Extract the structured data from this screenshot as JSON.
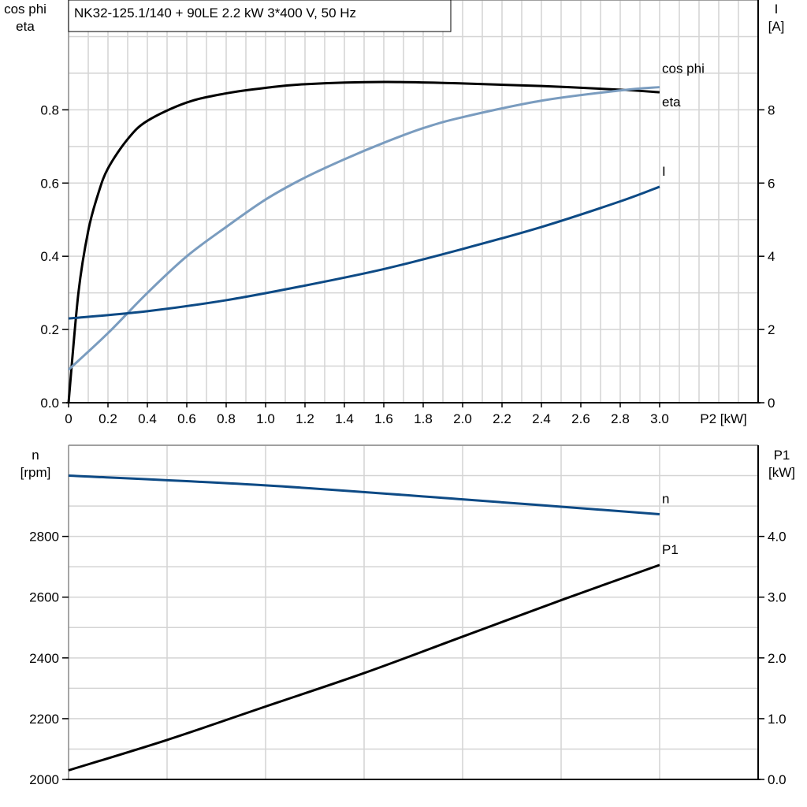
{
  "title": "NK32-125.1/140 + 90LE   2.2 kW   3*400 V, 50 Hz",
  "chart_data": [
    {
      "type": "line",
      "title": "NK32-125.1/140 + 90LE   2.2 kW   3*400 V, 50 Hz",
      "xlabel": "P2 [kW]",
      "ylabel_left": [
        "cos phi",
        "eta"
      ],
      "ylabel_right": [
        "I",
        "[A]"
      ],
      "xlim": [
        0,
        3.5
      ],
      "ylim_left": [
        0,
        1.1
      ],
      "ylim_right": [
        0,
        11
      ],
      "grid": true,
      "xticks": [
        "0",
        "0.2",
        "0.4",
        "0.6",
        "0.8",
        "1.0",
        "1.2",
        "1.4",
        "1.6",
        "1.8",
        "2.0",
        "2.2",
        "2.4",
        "2.6",
        "2.8",
        "3.0"
      ],
      "yticks_left": [
        "0.0",
        "0.2",
        "0.4",
        "0.6",
        "0.8"
      ],
      "yticks_right": [
        "0",
        "2",
        "4",
        "6",
        "8"
      ],
      "series": [
        {
          "name": "eta",
          "axis": "left",
          "color": "#000000",
          "x": [
            0,
            0.05,
            0.1,
            0.15,
            0.2,
            0.3,
            0.4,
            0.6,
            0.8,
            1.0,
            1.2,
            1.6,
            2.0,
            2.4,
            2.8,
            3.0
          ],
          "y": [
            0,
            0.3,
            0.47,
            0.57,
            0.64,
            0.72,
            0.77,
            0.82,
            0.845,
            0.86,
            0.87,
            0.876,
            0.872,
            0.865,
            0.855,
            0.848
          ]
        },
        {
          "name": "cos phi",
          "axis": "left",
          "color": "#7a9cbf",
          "x": [
            0,
            0.2,
            0.4,
            0.6,
            0.8,
            1.0,
            1.2,
            1.4,
            1.6,
            1.8,
            2.0,
            2.4,
            2.8,
            3.0
          ],
          "y": [
            0.09,
            0.19,
            0.3,
            0.4,
            0.48,
            0.555,
            0.615,
            0.665,
            0.71,
            0.75,
            0.78,
            0.825,
            0.853,
            0.862
          ]
        },
        {
          "name": "I",
          "axis": "right",
          "color": "#0d4a85",
          "x": [
            0,
            0.4,
            0.8,
            1.2,
            1.6,
            2.0,
            2.4,
            2.8,
            3.0
          ],
          "y": [
            2.3,
            2.5,
            2.8,
            3.2,
            3.65,
            4.2,
            4.8,
            5.5,
            5.9
          ]
        }
      ]
    },
    {
      "type": "line",
      "xlim": [
        0,
        3.5
      ],
      "ylabel_left": [
        "n",
        "[rpm]"
      ],
      "ylabel_right": [
        "P1",
        "[kW]"
      ],
      "ylim_left": [
        2000,
        3100
      ],
      "ylim_right": [
        0,
        5.5
      ],
      "grid": true,
      "yticks_left": [
        "2000",
        "2200",
        "2400",
        "2600",
        "2800"
      ],
      "yticks_right": [
        "0.0",
        "1.0",
        "2.0",
        "3.0",
        "4.0"
      ],
      "series": [
        {
          "name": "n",
          "axis": "left",
          "color": "#0d4a85",
          "x": [
            0,
            1.0,
            2.0,
            3.0
          ],
          "y": [
            3000,
            2968,
            2922,
            2873
          ]
        },
        {
          "name": "P1",
          "axis": "right",
          "color": "#000000",
          "x": [
            0,
            0.5,
            1.0,
            1.5,
            2.0,
            2.5,
            3.0
          ],
          "y": [
            0.15,
            0.65,
            1.2,
            1.75,
            2.35,
            2.95,
            3.53
          ]
        }
      ]
    }
  ]
}
